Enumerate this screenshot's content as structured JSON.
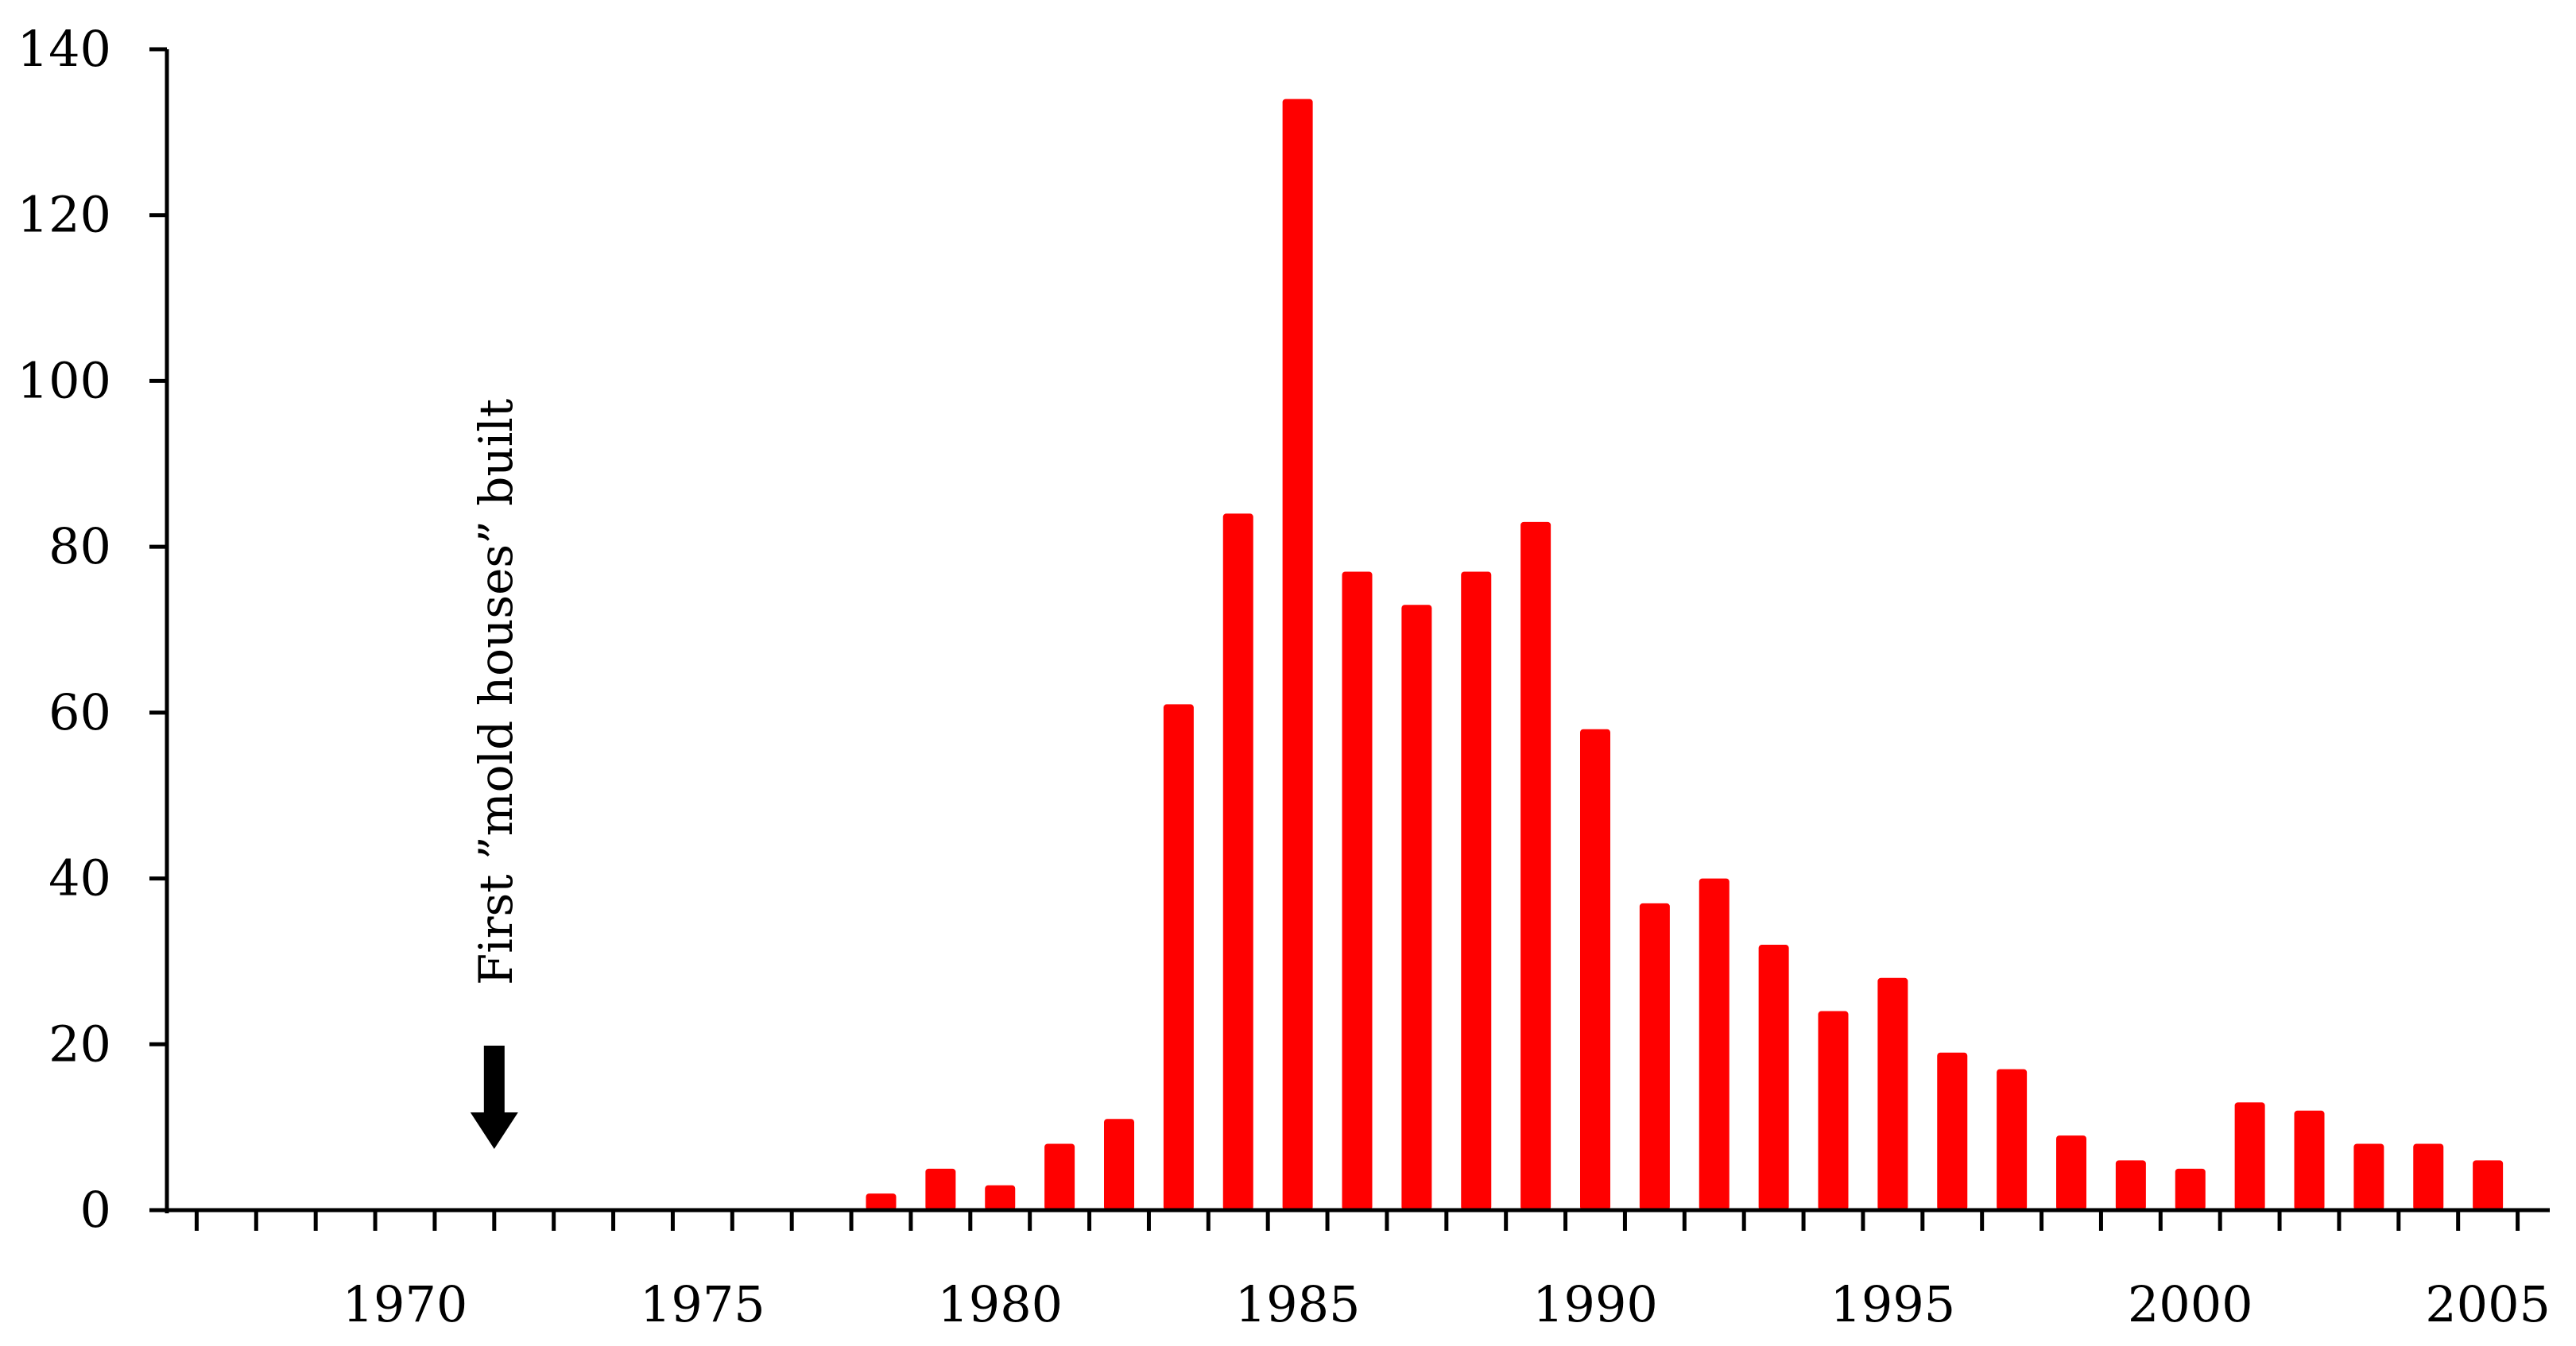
{
  "chart_data": {
    "type": "bar",
    "title": "",
    "xlabel": "",
    "ylabel": "",
    "ylim": [
      0,
      140
    ],
    "xlim": [
      1966,
      2006
    ],
    "y_ticks": [
      0,
      20,
      40,
      60,
      80,
      100,
      120,
      140
    ],
    "x_tick_labels": [
      "1970",
      "1975",
      "1980",
      "1985",
      "1990",
      "1995",
      "2000",
      "2005"
    ],
    "x_tick_values": [
      1970,
      1975,
      1980,
      1985,
      1990,
      1995,
      2000,
      2005
    ],
    "grid": false,
    "legend": "none",
    "bar_color": "#ff0000",
    "categories": [
      1978,
      1979,
      1980,
      1981,
      1982,
      1983,
      1984,
      1985,
      1986,
      1987,
      1988,
      1989,
      1990,
      1991,
      1992,
      1993,
      1994,
      1995,
      1996,
      1997,
      1998,
      1999,
      2000,
      2001,
      2002,
      2003,
      2004,
      2005
    ],
    "values": [
      2,
      5,
      3,
      8,
      11,
      61,
      84,
      134,
      77,
      73,
      77,
      83,
      58,
      37,
      40,
      32,
      24,
      28,
      19,
      17,
      9,
      6,
      5,
      13,
      12,
      8,
      8,
      6
    ],
    "annotations": [
      {
        "text": "First ”mold houses” built",
        "x": 1971.5,
        "marker": "down-arrow"
      }
    ]
  }
}
